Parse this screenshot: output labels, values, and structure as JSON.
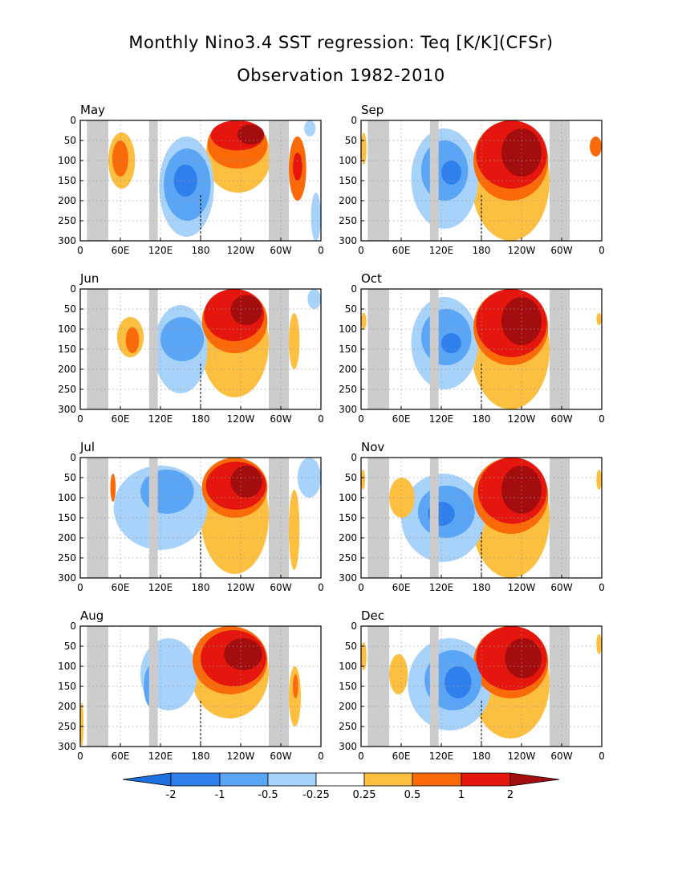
{
  "title_line1": "Monthly Nino3.4 SST regression: Teq [K/K](CFSr)",
  "title_line2": "Observation 1982-2010",
  "x_tick_labels": [
    "0",
    "60E",
    "120E",
    "180",
    "120W",
    "60W",
    "0"
  ],
  "y_tick_labels": [
    "0",
    "50",
    "100",
    "150",
    "200",
    "250",
    "300"
  ],
  "colorbar_labels": [
    "-2",
    "-1",
    "-0.5",
    "-0.25",
    "0.25",
    "0.5",
    "1",
    "2"
  ],
  "colors": {
    "neg_lowest": "#1e6fe0",
    "neg_strong": "#2f80ec",
    "neg_medium": "#5aa5f5",
    "neg_weak": "#a7d2fa",
    "pos_weak": "#fcbf3f",
    "pos_medium": "#fb6a08",
    "pos_strong": "#e5160d",
    "pos_highest": "#a40d0d",
    "land": "#cccccc",
    "grid": "#999999"
  },
  "chart_data": [
    {
      "type": "heatmap",
      "title": "May",
      "xlim": [
        0,
        360
      ],
      "ylim": [
        0,
        300
      ],
      "y_inverted": true,
      "x_ticks": [
        0,
        60,
        120,
        180,
        240,
        300,
        360
      ],
      "y_ticks": [
        0,
        50,
        100,
        150,
        200,
        250,
        300
      ],
      "land_lon": [
        [
          10,
          42
        ],
        [
          103,
          116
        ],
        [
          282,
          312
        ]
      ],
      "features": [
        {
          "level": 1,
          "lon": 187,
          "lon2": 285,
          "depth": 0,
          "depth2": 180
        },
        {
          "level": 2,
          "lon": 190,
          "lon2": 280,
          "depth": 0,
          "depth2": 120
        },
        {
          "level": 3,
          "lon": 195,
          "lon2": 275,
          "depth": 0,
          "depth2": 75
        },
        {
          "level": 4,
          "lon": 235,
          "lon2": 275,
          "depth": 10,
          "depth2": 60
        },
        {
          "level": -1,
          "lon": 118,
          "lon2": 200,
          "depth": 40,
          "depth2": 290
        },
        {
          "level": -2,
          "lon": 125,
          "lon2": 195,
          "depth": 70,
          "depth2": 250
        },
        {
          "level": -3,
          "lon": 140,
          "lon2": 175,
          "depth": 110,
          "depth2": 190
        },
        {
          "level": 1,
          "lon": 42,
          "lon2": 82,
          "depth": 30,
          "depth2": 170
        },
        {
          "level": 2,
          "lon": 48,
          "lon2": 72,
          "depth": 50,
          "depth2": 140
        },
        {
          "level": 2,
          "lon": 312,
          "lon2": 338,
          "depth": 40,
          "depth2": 200
        },
        {
          "level": 3,
          "lon": 318,
          "lon2": 332,
          "depth": 80,
          "depth2": 150
        },
        {
          "level": -1,
          "lon": 335,
          "lon2": 352,
          "depth": 0,
          "depth2": 40
        },
        {
          "level": -1,
          "lon": 345,
          "lon2": 360,
          "depth": 180,
          "depth2": 300
        }
      ]
    },
    {
      "type": "heatmap",
      "title": "Sep",
      "xlim": [
        0,
        360
      ],
      "ylim": [
        0,
        300
      ],
      "y_inverted": true,
      "x_ticks": [
        0,
        60,
        120,
        180,
        240,
        300,
        360
      ],
      "y_ticks": [
        0,
        50,
        100,
        150,
        200,
        250,
        300
      ],
      "land_lon": [
        [
          10,
          42
        ],
        [
          103,
          116
        ],
        [
          282,
          312
        ]
      ],
      "features": [
        {
          "level": 1,
          "lon": 165,
          "lon2": 282,
          "depth": 0,
          "depth2": 300
        },
        {
          "level": 2,
          "lon": 168,
          "lon2": 280,
          "depth": 0,
          "depth2": 200
        },
        {
          "level": 3,
          "lon": 172,
          "lon2": 278,
          "depth": 0,
          "depth2": 170
        },
        {
          "level": 4,
          "lon": 210,
          "lon2": 270,
          "depth": 20,
          "depth2": 140
        },
        {
          "level": -1,
          "lon": 75,
          "lon2": 175,
          "depth": 20,
          "depth2": 270
        },
        {
          "level": -2,
          "lon": 90,
          "lon2": 160,
          "depth": 50,
          "depth2": 200
        },
        {
          "level": -3,
          "lon": 120,
          "lon2": 150,
          "depth": 100,
          "depth2": 160
        },
        {
          "level": 1,
          "lon": 0,
          "lon2": 8,
          "depth": 30,
          "depth2": 110
        },
        {
          "level": 2,
          "lon": 342,
          "lon2": 360,
          "depth": 40,
          "depth2": 90
        }
      ]
    },
    {
      "type": "heatmap",
      "title": "Jun",
      "xlim": [
        0,
        360
      ],
      "ylim": [
        0,
        300
      ],
      "y_inverted": true,
      "x_ticks": [
        0,
        60,
        120,
        180,
        240,
        300,
        360
      ],
      "y_ticks": [
        0,
        50,
        100,
        150,
        200,
        250,
        300
      ],
      "land_lon": [
        [
          10,
          42
        ],
        [
          103,
          116
        ],
        [
          282,
          312
        ]
      ],
      "features": [
        {
          "level": 1,
          "lon": 180,
          "lon2": 282,
          "depth": 0,
          "depth2": 270
        },
        {
          "level": 2,
          "lon": 182,
          "lon2": 280,
          "depth": 0,
          "depth2": 160
        },
        {
          "level": 3,
          "lon": 185,
          "lon2": 275,
          "depth": 0,
          "depth2": 130
        },
        {
          "level": 4,
          "lon": 225,
          "lon2": 272,
          "depth": 15,
          "depth2": 90
        },
        {
          "level": -1,
          "lon": 110,
          "lon2": 190,
          "depth": 40,
          "depth2": 260
        },
        {
          "level": -2,
          "lon": 120,
          "lon2": 185,
          "depth": 70,
          "depth2": 180
        },
        {
          "level": 1,
          "lon": 55,
          "lon2": 95,
          "depth": 70,
          "depth2": 170
        },
        {
          "level": 2,
          "lon": 68,
          "lon2": 88,
          "depth": 95,
          "depth2": 160
        },
        {
          "level": 1,
          "lon": 312,
          "lon2": 328,
          "depth": 60,
          "depth2": 200
        },
        {
          "level": -1,
          "lon": 340,
          "lon2": 360,
          "depth": 0,
          "depth2": 50
        }
      ]
    },
    {
      "type": "heatmap",
      "title": "Oct",
      "xlim": [
        0,
        360
      ],
      "ylim": [
        0,
        300
      ],
      "y_inverted": true,
      "x_ticks": [
        0,
        60,
        120,
        180,
        240,
        300,
        360
      ],
      "y_ticks": [
        0,
        50,
        100,
        150,
        200,
        250,
        300
      ],
      "land_lon": [
        [
          10,
          42
        ],
        [
          103,
          116
        ],
        [
          282,
          312
        ]
      ],
      "features": [
        {
          "level": 1,
          "lon": 165,
          "lon2": 282,
          "depth": 0,
          "depth2": 300
        },
        {
          "level": 2,
          "lon": 168,
          "lon2": 280,
          "depth": 0,
          "depth2": 190
        },
        {
          "level": 3,
          "lon": 172,
          "lon2": 278,
          "depth": 0,
          "depth2": 170
        },
        {
          "level": 4,
          "lon": 210,
          "lon2": 270,
          "depth": 20,
          "depth2": 140
        },
        {
          "level": -1,
          "lon": 75,
          "lon2": 175,
          "depth": 20,
          "depth2": 250
        },
        {
          "level": -2,
          "lon": 90,
          "lon2": 165,
          "depth": 50,
          "depth2": 190
        },
        {
          "level": -3,
          "lon": 120,
          "lon2": 150,
          "depth": 110,
          "depth2": 160
        },
        {
          "level": 1,
          "lon": 0,
          "lon2": 8,
          "depth": 60,
          "depth2": 100
        },
        {
          "level": 1,
          "lon": 352,
          "lon2": 360,
          "depth": 60,
          "depth2": 90
        }
      ]
    },
    {
      "type": "heatmap",
      "title": "Jul",
      "xlim": [
        0,
        360
      ],
      "ylim": [
        0,
        300
      ],
      "y_inverted": true,
      "x_ticks": [
        0,
        60,
        120,
        180,
        240,
        300,
        360
      ],
      "y_ticks": [
        0,
        50,
        100,
        150,
        200,
        250,
        300
      ],
      "land_lon": [
        [
          10,
          42
        ],
        [
          103,
          116
        ],
        [
          282,
          312
        ]
      ],
      "features": [
        {
          "level": 1,
          "lon": 180,
          "lon2": 282,
          "depth": 0,
          "depth2": 290
        },
        {
          "level": 2,
          "lon": 182,
          "lon2": 280,
          "depth": 0,
          "depth2": 150
        },
        {
          "level": 3,
          "lon": 188,
          "lon2": 278,
          "depth": 10,
          "depth2": 130
        },
        {
          "level": 4,
          "lon": 225,
          "lon2": 272,
          "depth": 20,
          "depth2": 100
        },
        {
          "level": -1,
          "lon": 50,
          "lon2": 190,
          "depth": 20,
          "depth2": 230
        },
        {
          "level": -2,
          "lon": 90,
          "lon2": 170,
          "depth": 30,
          "depth2": 140
        },
        {
          "level": 2,
          "lon": 45,
          "lon2": 53,
          "depth": 40,
          "depth2": 110
        },
        {
          "level": 1,
          "lon": 312,
          "lon2": 328,
          "depth": 80,
          "depth2": 280
        },
        {
          "level": -1,
          "lon": 325,
          "lon2": 360,
          "depth": 0,
          "depth2": 100
        }
      ]
    },
    {
      "type": "heatmap",
      "title": "Nov",
      "xlim": [
        0,
        360
      ],
      "ylim": [
        0,
        300
      ],
      "y_inverted": true,
      "x_ticks": [
        0,
        60,
        120,
        180,
        240,
        300,
        360
      ],
      "y_ticks": [
        0,
        50,
        100,
        150,
        200,
        250,
        300
      ],
      "land_lon": [
        [
          10,
          42
        ],
        [
          103,
          116
        ],
        [
          282,
          312
        ]
      ],
      "features": [
        {
          "level": 1,
          "lon": 165,
          "lon2": 282,
          "depth": 0,
          "depth2": 300
        },
        {
          "level": 2,
          "lon": 168,
          "lon2": 280,
          "depth": 0,
          "depth2": 190
        },
        {
          "level": 3,
          "lon": 175,
          "lon2": 278,
          "depth": 0,
          "depth2": 165
        },
        {
          "level": 4,
          "lon": 210,
          "lon2": 270,
          "depth": 20,
          "depth2": 140
        },
        {
          "level": -1,
          "lon": 60,
          "lon2": 185,
          "depth": 40,
          "depth2": 260
        },
        {
          "level": -2,
          "lon": 85,
          "lon2": 170,
          "depth": 70,
          "depth2": 200
        },
        {
          "level": -3,
          "lon": 100,
          "lon2": 140,
          "depth": 110,
          "depth2": 170
        },
        {
          "level": 1,
          "lon": 42,
          "lon2": 80,
          "depth": 50,
          "depth2": 150
        },
        {
          "level": 1,
          "lon": 0,
          "lon2": 6,
          "depth": 30,
          "depth2": 80
        },
        {
          "level": 1,
          "lon": 352,
          "lon2": 360,
          "depth": 30,
          "depth2": 80
        }
      ]
    },
    {
      "type": "heatmap",
      "title": "Aug",
      "xlim": [
        0,
        360
      ],
      "ylim": [
        0,
        300
      ],
      "y_inverted": true,
      "x_ticks": [
        0,
        60,
        120,
        180,
        240,
        300,
        360
      ],
      "y_ticks": [
        0,
        50,
        100,
        150,
        200,
        250,
        300
      ],
      "land_lon": [
        [
          10,
          42
        ],
        [
          103,
          116
        ],
        [
          282,
          312
        ]
      ],
      "features": [
        {
          "level": 1,
          "lon": 165,
          "lon2": 282,
          "depth": 0,
          "depth2": 230
        },
        {
          "level": 2,
          "lon": 168,
          "lon2": 280,
          "depth": 0,
          "depth2": 170
        },
        {
          "level": 3,
          "lon": 180,
          "lon2": 278,
          "depth": 10,
          "depth2": 150
        },
        {
          "level": 4,
          "lon": 215,
          "lon2": 272,
          "depth": 30,
          "depth2": 110
        },
        {
          "level": -1,
          "lon": 90,
          "lon2": 175,
          "depth": 30,
          "depth2": 210
        },
        {
          "level": -2,
          "lon": 95,
          "lon2": 115,
          "depth": 100,
          "depth2": 200
        },
        {
          "level": 1,
          "lon": 312,
          "lon2": 330,
          "depth": 100,
          "depth2": 250
        },
        {
          "level": 2,
          "lon": 318,
          "lon2": 326,
          "depth": 120,
          "depth2": 180
        },
        {
          "level": 1,
          "lon": 0,
          "lon2": 5,
          "depth": 190,
          "depth2": 300
        }
      ]
    },
    {
      "type": "heatmap",
      "title": "Dec",
      "xlim": [
        0,
        360
      ],
      "ylim": [
        0,
        300
      ],
      "y_inverted": true,
      "x_ticks": [
        0,
        60,
        120,
        180,
        240,
        300,
        360
      ],
      "y_ticks": [
        0,
        50,
        100,
        150,
        200,
        250,
        300
      ],
      "land_lon": [
        [
          10,
          42
        ],
        [
          103,
          116
        ],
        [
          282,
          312
        ]
      ],
      "features": [
        {
          "level": 1,
          "lon": 165,
          "lon2": 282,
          "depth": 0,
          "depth2": 280
        },
        {
          "level": 2,
          "lon": 168,
          "lon2": 280,
          "depth": 0,
          "depth2": 180
        },
        {
          "level": 3,
          "lon": 172,
          "lon2": 278,
          "depth": 0,
          "depth2": 160
        },
        {
          "level": 4,
          "lon": 215,
          "lon2": 270,
          "depth": 30,
          "depth2": 130
        },
        {
          "level": -1,
          "lon": 70,
          "lon2": 195,
          "depth": 30,
          "depth2": 260
        },
        {
          "level": -2,
          "lon": 95,
          "lon2": 180,
          "depth": 60,
          "depth2": 210
        },
        {
          "level": -3,
          "lon": 125,
          "lon2": 165,
          "depth": 100,
          "depth2": 180
        },
        {
          "level": 1,
          "lon": 42,
          "lon2": 70,
          "depth": 70,
          "depth2": 170
        },
        {
          "level": 1,
          "lon": 0,
          "lon2": 8,
          "depth": 40,
          "depth2": 110
        },
        {
          "level": 1,
          "lon": 352,
          "lon2": 360,
          "depth": 20,
          "depth2": 70
        }
      ]
    }
  ]
}
